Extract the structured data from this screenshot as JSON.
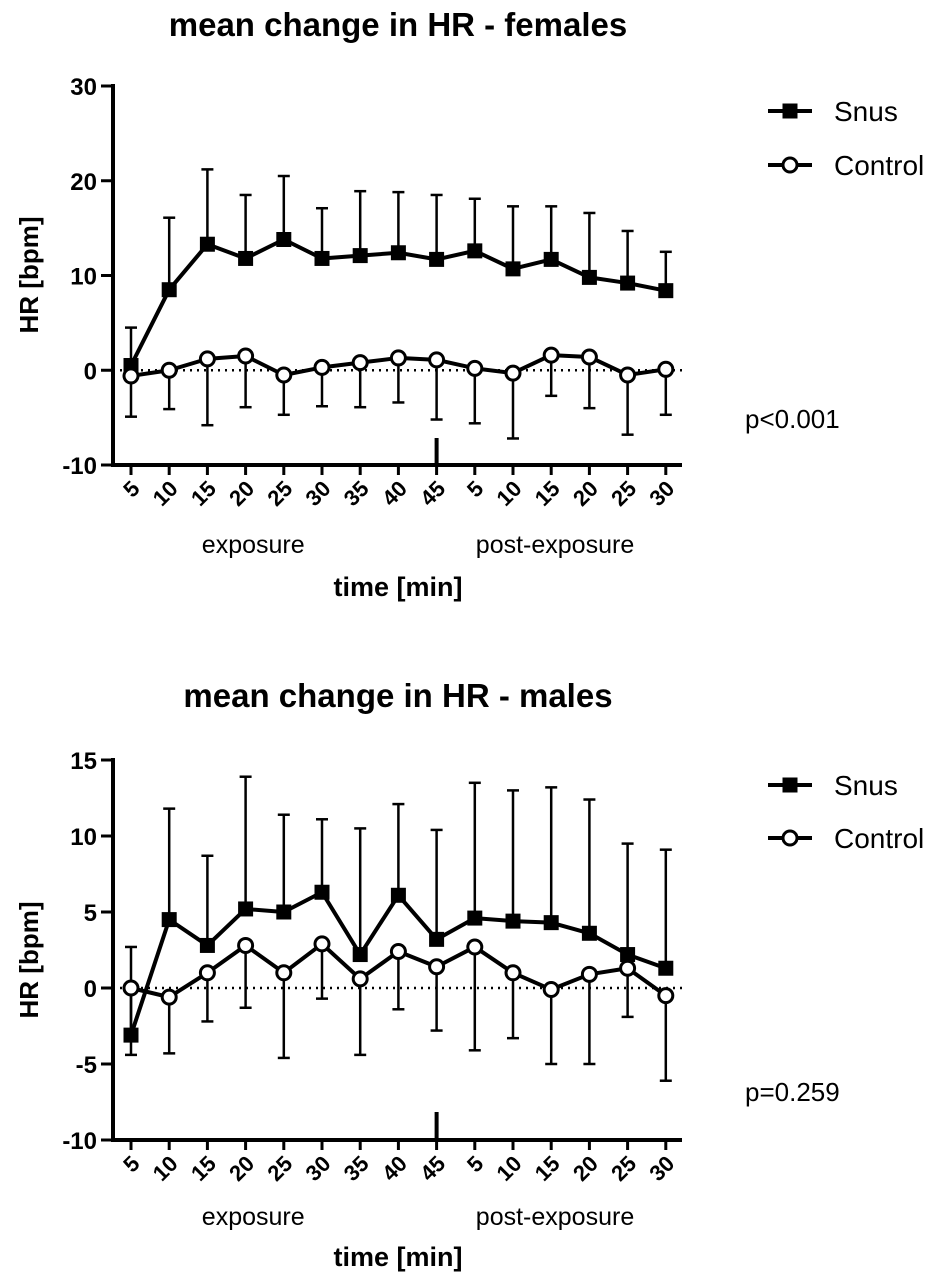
{
  "charts": [
    {
      "type": "line",
      "title": "mean change in HR - females",
      "xlabel": "time [min]",
      "ylabel": "HR [bpm]",
      "ylim": [
        -10,
        30
      ],
      "yticks": [
        "-10",
        "0",
        "10",
        "20",
        "30"
      ],
      "categories": [
        "5",
        "10",
        "15",
        "20",
        "25",
        "30",
        "35",
        "40",
        "45",
        "5",
        "10",
        "15",
        "20",
        "25",
        "30"
      ],
      "groups": [
        "exposure",
        "post-exposure"
      ],
      "p_value": "p<0.001",
      "reference_line": 0,
      "series": [
        {
          "name": "Snus",
          "marker": "filled-square",
          "values": [
            0.5,
            8.5,
            13.3,
            11.8,
            13.8,
            11.8,
            12.1,
            12.4,
            11.7,
            12.6,
            10.7,
            11.7,
            9.8,
            9.2,
            8.4
          ],
          "error_upper": [
            4.5,
            16.1,
            21.2,
            18.5,
            20.5,
            17.1,
            18.9,
            18.8,
            18.5,
            18.1,
            17.3,
            17.3,
            16.6,
            14.7,
            12.5
          ],
          "error_direction": "up"
        },
        {
          "name": "Control",
          "marker": "open-circle",
          "values": [
            -0.6,
            0.0,
            1.2,
            1.5,
            -0.5,
            0.3,
            0.8,
            1.3,
            1.1,
            0.2,
            -0.3,
            1.6,
            1.4,
            -0.5,
            0.1
          ],
          "error_lower": [
            -4.9,
            -4.1,
            -5.8,
            -3.9,
            -4.7,
            -3.8,
            -3.9,
            -3.4,
            -5.2,
            -5.6,
            -7.2,
            -2.7,
            -4.0,
            -6.8,
            -4.7
          ],
          "error_direction": "down"
        }
      ]
    },
    {
      "type": "line",
      "title": "mean change in HR - males",
      "xlabel": "time [min]",
      "ylabel": "HR [bpm]",
      "ylim": [
        -10,
        15
      ],
      "yticks": [
        "-10",
        "-5",
        "0",
        "5",
        "10",
        "15"
      ],
      "categories": [
        "5",
        "10",
        "15",
        "20",
        "25",
        "30",
        "35",
        "40",
        "45",
        "5",
        "10",
        "15",
        "20",
        "25",
        "30"
      ],
      "groups": [
        "exposure",
        "post-exposure"
      ],
      "p_value": "p=0.259",
      "reference_line": 0,
      "series": [
        {
          "name": "Snus",
          "marker": "filled-square",
          "values": [
            -3.1,
            4.5,
            2.8,
            5.2,
            5.0,
            6.3,
            2.2,
            6.1,
            3.2,
            4.6,
            4.4,
            4.3,
            3.6,
            2.2,
            1.3
          ],
          "error_upper": [
            2.7,
            11.8,
            8.7,
            13.9,
            11.4,
            11.1,
            10.5,
            12.1,
            10.4,
            13.5,
            13.0,
            13.2,
            12.4,
            9.5,
            9.1
          ],
          "error_direction": "up"
        },
        {
          "name": "Control",
          "marker": "open-circle",
          "values": [
            0.0,
            -0.6,
            1.0,
            2.8,
            1.0,
            2.9,
            0.6,
            2.4,
            1.4,
            2.7,
            1.0,
            -0.1,
            0.9,
            1.3,
            -0.5
          ],
          "error_lower": [
            -4.4,
            -4.3,
            -2.2,
            -1.3,
            -4.6,
            -0.7,
            -4.4,
            -1.4,
            -2.8,
            -4.1,
            -3.3,
            -5.0,
            -5.0,
            -1.9,
            -6.1
          ],
          "error_direction": "down"
        }
      ]
    }
  ]
}
